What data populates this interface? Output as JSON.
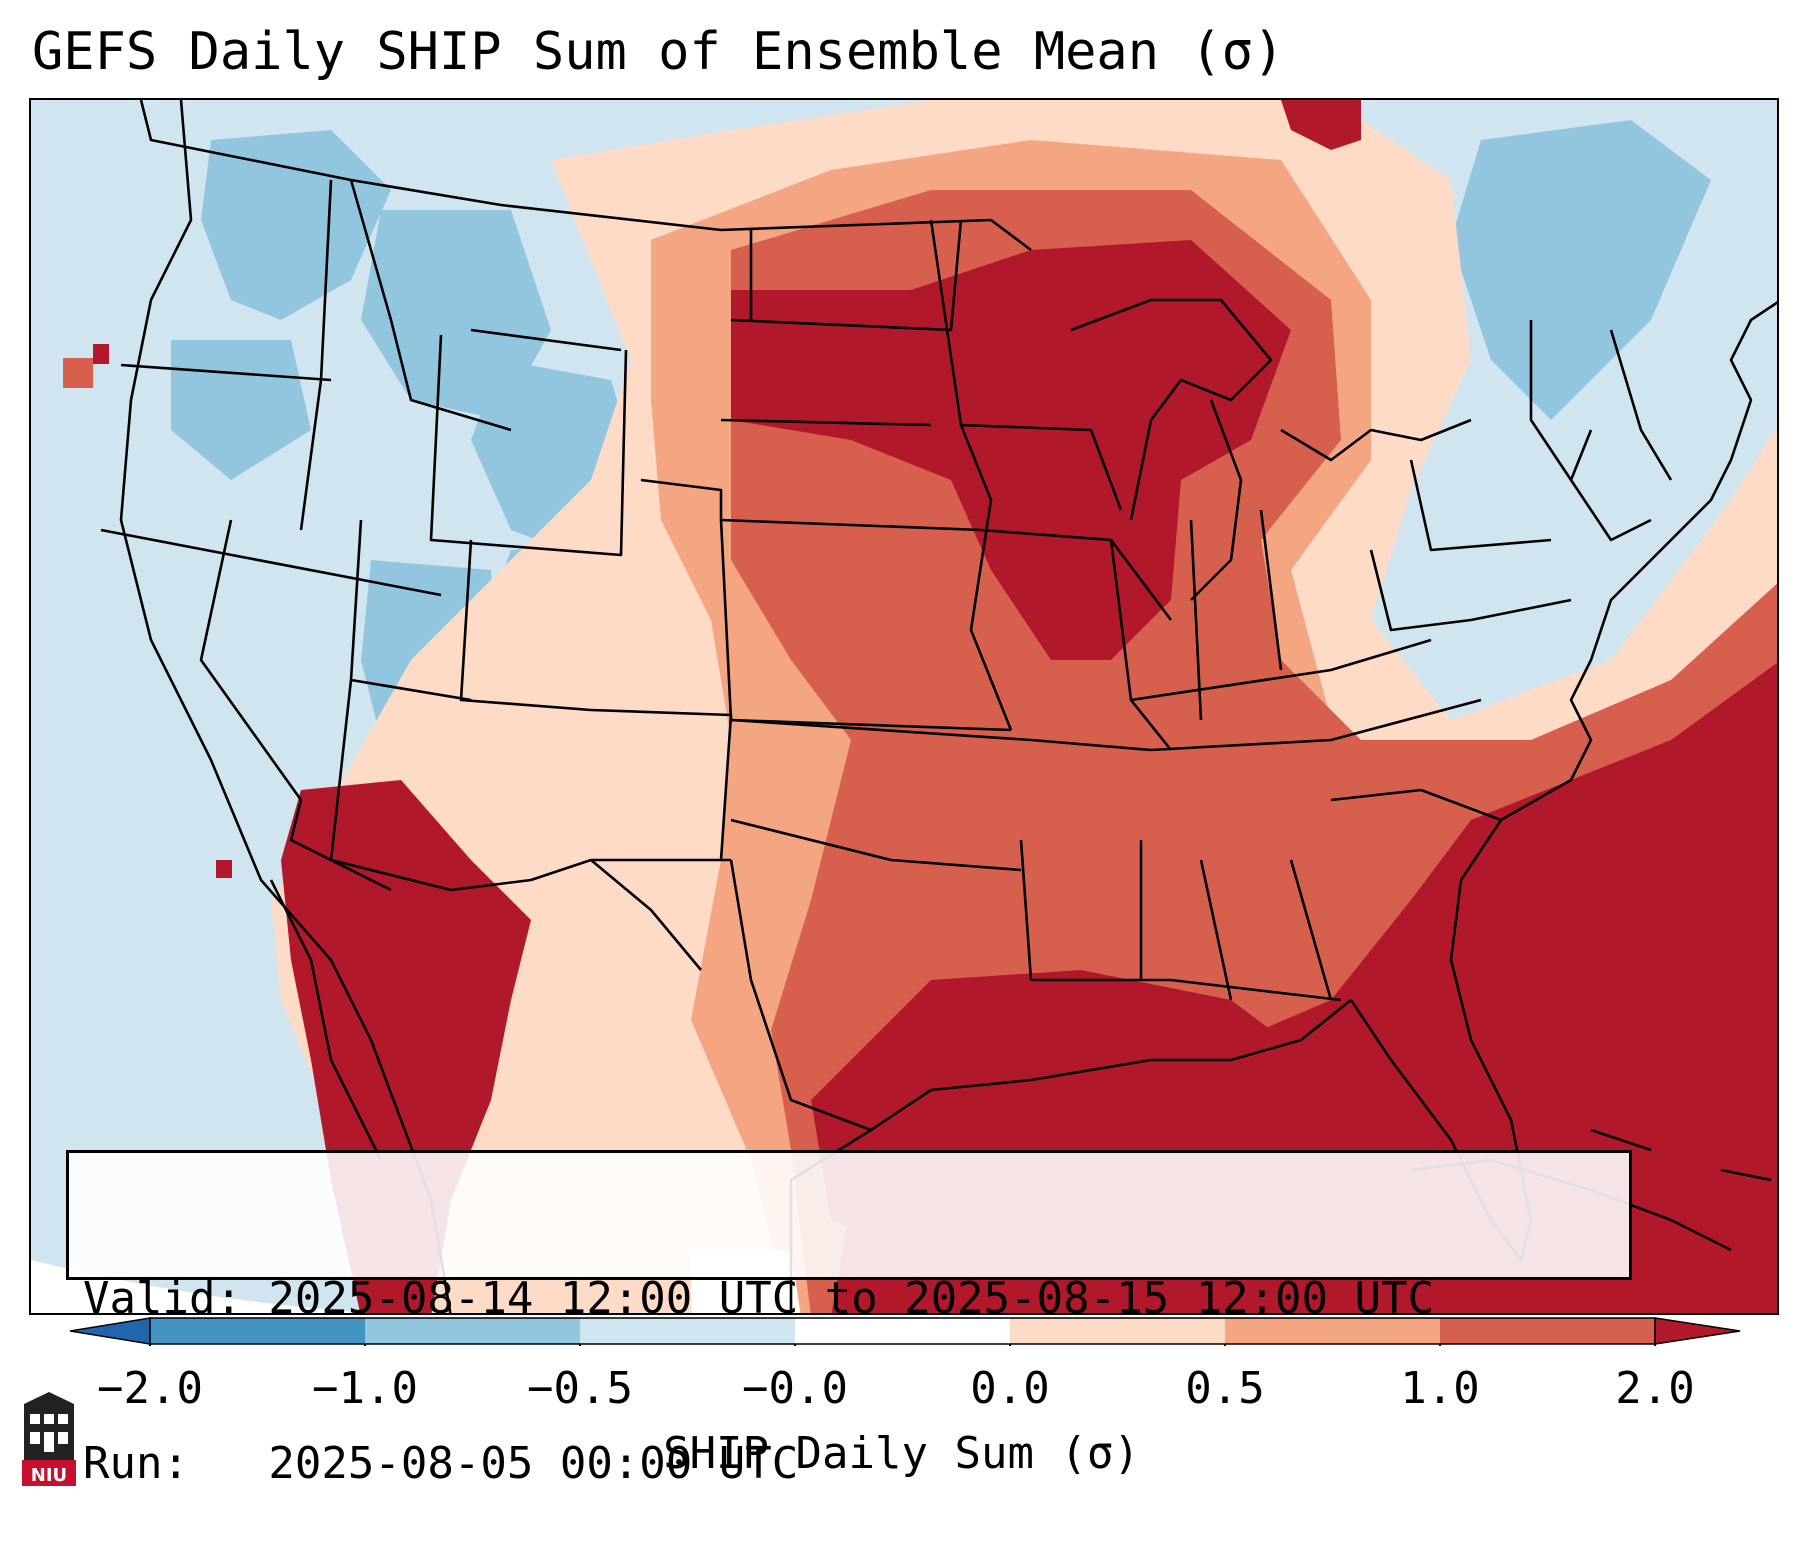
{
  "title": "GEFS Daily SHIP Sum of Ensemble Mean (σ)",
  "info": {
    "valid": "Valid: 2025-08-14 12:00 UTC to 2025-08-15 12:00 UTC",
    "run": "Run:   2025-08-05 00:00 UTC"
  },
  "colorbar": {
    "label": "SHIP Daily Sum (σ)",
    "ticks": [
      "−2.0",
      "−1.0",
      "−0.5",
      "−0.0",
      "0.0",
      "0.5",
      "1.0",
      "2.0"
    ],
    "colors": {
      "under": "#2166ac",
      "bins": [
        "#4393c3",
        "#92c5de",
        "#d1e5f0",
        "#ffffff",
        "#fddbc7",
        "#f4a582",
        "#d6604d"
      ],
      "over": "#b2182b"
    }
  },
  "map": {
    "background": "#d1e5f0",
    "state_line_color": "#000000"
  },
  "logo": {
    "text": "NIU",
    "color": "#c8102e"
  }
}
